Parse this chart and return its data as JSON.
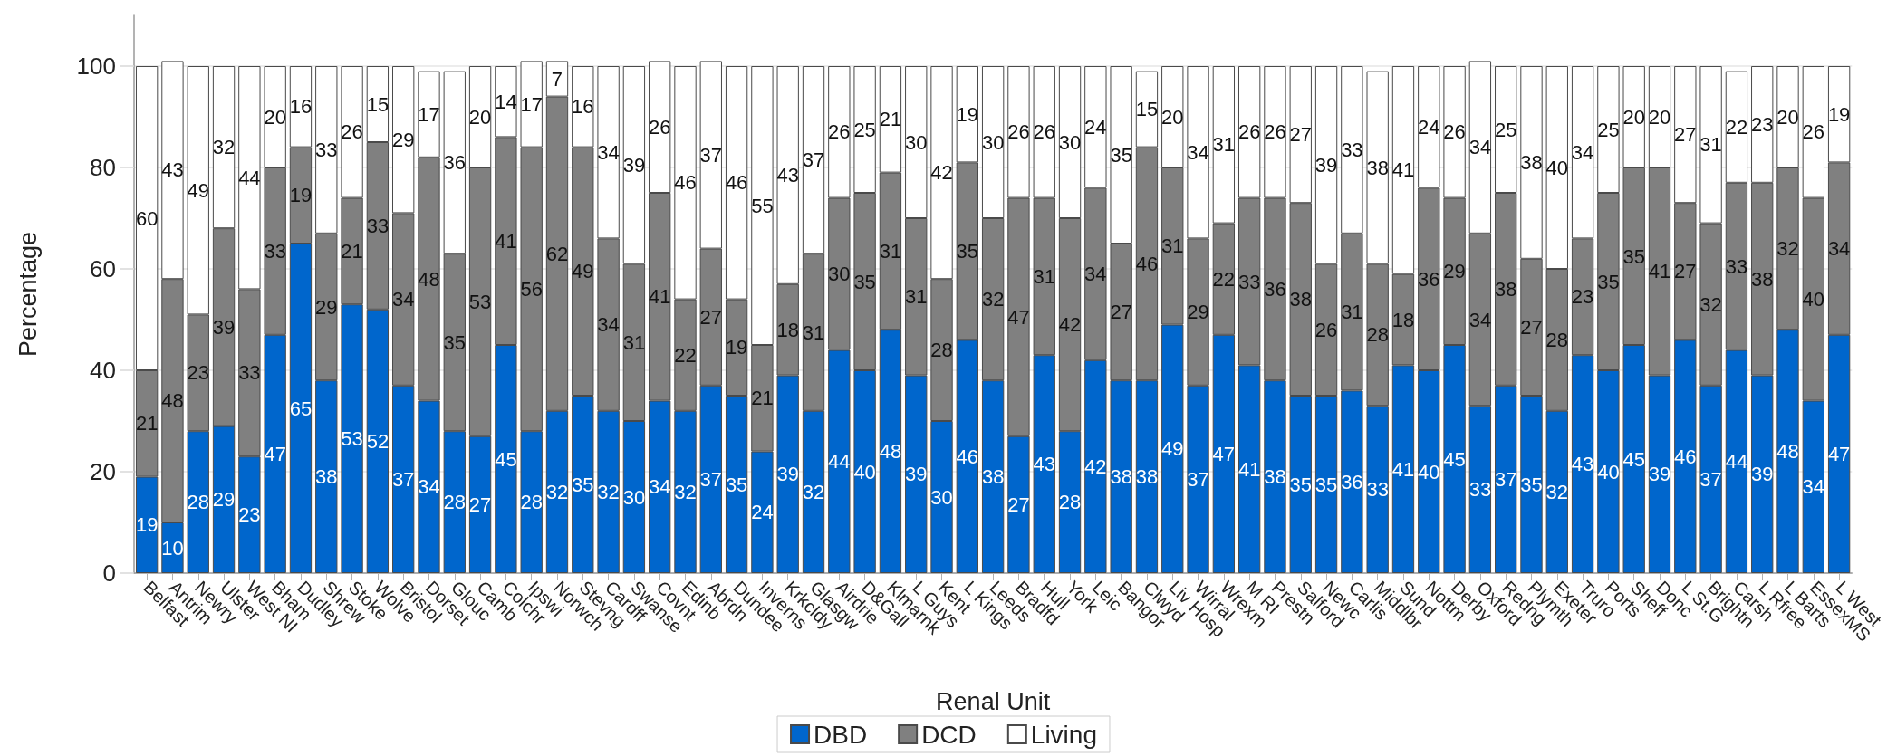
{
  "chart_data": {
    "type": "bar",
    "stacked": true,
    "data_labels": true,
    "xlabel": "Renal Unit",
    "ylabel": "Percentage",
    "categories": [
      "Belfast",
      "Antrim",
      "Newry",
      "Ulster",
      "West NI",
      "Bham",
      "Dudley",
      "Shrew",
      "Stoke",
      "Wolve",
      "Bristol",
      "Dorset",
      "Glouc",
      "Camb",
      "Colchr",
      "Ipswi",
      "Norwch",
      "Stevng",
      "Cardff",
      "Swanse",
      "Covnt",
      "Edinb",
      "Abrdn",
      "Dundee",
      "Inverns",
      "Krkcldy",
      "Glasgw",
      "Airdrie",
      "D&Gall",
      "Klmarnk",
      "L Guys",
      "Kent",
      "L Kings",
      "Leeds",
      "Bradfd",
      "Hull",
      "York",
      "Leic",
      "Bangor",
      "Clwyd",
      "Liv Hosp",
      "Wirral",
      "Wrexm",
      "M RI",
      "Prestn",
      "Salford",
      "Newc",
      "Carlis",
      "Middlbr",
      "Sund",
      "Nottm",
      "Derby",
      "Oxford",
      "Redng",
      "Plymth",
      "Exeter",
      "Truro",
      "Ports",
      "Sheff",
      "Donc",
      "L St.G",
      "Brightn",
      "Carsh",
      "L Rfree",
      "L Barts",
      "EssexMS",
      "L West"
    ],
    "series": [
      {
        "name": "DBD",
        "color": "#0066cc",
        "values": [
          19,
          10,
          28,
          29,
          23,
          47,
          65,
          38,
          53,
          52,
          37,
          34,
          28,
          27,
          45,
          28,
          32,
          35,
          32,
          30,
          34,
          32,
          37,
          35,
          24,
          39,
          32,
          44,
          40,
          48,
          39,
          30,
          46,
          38,
          27,
          43,
          28,
          42,
          38,
          38,
          49,
          37,
          47,
          41,
          38,
          35,
          35,
          36,
          33,
          41,
          40,
          45,
          33,
          37,
          35,
          32,
          43,
          40,
          45,
          39,
          46,
          37,
          44,
          39,
          48,
          34,
          47
        ]
      },
      {
        "name": "DCD",
        "color": "#808080",
        "values": [
          21,
          48,
          23,
          39,
          33,
          33,
          19,
          29,
          21,
          33,
          34,
          48,
          35,
          53,
          41,
          56,
          62,
          49,
          34,
          31,
          41,
          22,
          27,
          19,
          21,
          18,
          31,
          30,
          35,
          31,
          31,
          28,
          35,
          32,
          47,
          31,
          42,
          34,
          27,
          46,
          31,
          29,
          22,
          33,
          36,
          38,
          26,
          31,
          28,
          18,
          36,
          29,
          34,
          38,
          27,
          28,
          23,
          35,
          35,
          41,
          27,
          32,
          33,
          38,
          32,
          40,
          34
        ]
      },
      {
        "name": "Living",
        "color": "#ffffff",
        "values": [
          60,
          43,
          49,
          32,
          44,
          20,
          16,
          33,
          26,
          15,
          29,
          17,
          36,
          20,
          14,
          17,
          7,
          16,
          34,
          39,
          26,
          46,
          37,
          46,
          55,
          43,
          37,
          26,
          25,
          21,
          30,
          42,
          19,
          30,
          26,
          26,
          30,
          24,
          35,
          15,
          20,
          34,
          31,
          26,
          26,
          27,
          39,
          33,
          38,
          41,
          24,
          26,
          34,
          25,
          38,
          40,
          34,
          25,
          20,
          20,
          27,
          31,
          22,
          23,
          20,
          26,
          19
        ]
      }
    ],
    "ylim": [
      0,
      110
    ],
    "yticks": [
      0,
      20,
      40,
      60,
      80,
      100
    ],
    "grid": "y",
    "legend": "bottom"
  }
}
